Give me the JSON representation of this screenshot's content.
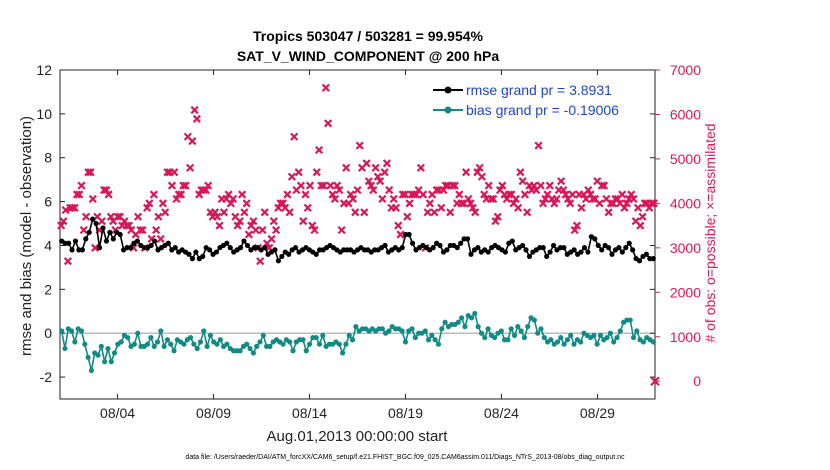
{
  "chart_data": {
    "type": "line",
    "title_line1": "Tropics 503047 / 503281 = 99.954%",
    "title_line2": "SAT_V_WIND_COMPONENT @ 200 hPa",
    "xlabel": "Aug.01,2013 00:00:00 start",
    "ylabel_left": "rmse and bias (model - observation)",
    "ylabel_right": "# of obs: o=possible; ×=assimilated",
    "ylim_left": [
      -3,
      12
    ],
    "ylim_right": [
      -400,
      7000
    ],
    "yticks_left": [
      "-2",
      "0",
      "2",
      "4",
      "6",
      "8",
      "10",
      "12"
    ],
    "yticks_right": [
      "0",
      "1000",
      "2000",
      "3000",
      "4000",
      "5000",
      "6000",
      "7000"
    ],
    "xlim_days": [
      1.0,
      32.0
    ],
    "xticks": [
      {
        "day": 4,
        "label": "08/04"
      },
      {
        "day": 9,
        "label": "08/09"
      },
      {
        "day": 14,
        "label": "08/14"
      },
      {
        "day": 19,
        "label": "08/19"
      },
      {
        "day": 24,
        "label": "08/24"
      },
      {
        "day": 29,
        "label": "08/29"
      }
    ],
    "time_step_days": 0.25,
    "series": [
      {
        "name": "rmse grand pr = 3.8931",
        "color": "#000000",
        "axis": "left",
        "marker": "circle",
        "values": [
          4.2,
          4.1,
          4.1,
          3.8,
          4.2,
          3.8,
          3.8,
          4.3,
          4.6,
          5.2,
          5.0,
          3.9,
          4.8,
          4.2,
          4.6,
          4.3,
          4.6,
          4.5,
          3.8,
          3.9,
          3.9,
          4.1,
          4.2,
          4.0,
          3.9,
          3.9,
          4.0,
          4.2,
          3.8,
          3.9,
          4.0,
          4.1,
          3.8,
          3.9,
          3.7,
          3.8,
          3.7,
          3.6,
          3.4,
          3.7,
          3.4,
          3.5,
          3.9,
          3.8,
          3.6,
          3.7,
          3.9,
          4.0,
          4.1,
          3.9,
          3.7,
          3.8,
          3.9,
          4.2,
          4.0,
          3.8,
          3.9,
          3.9,
          3.8,
          3.9,
          3.6,
          3.7,
          3.8,
          3.3,
          3.5,
          3.7,
          3.6,
          3.8,
          3.9,
          3.7,
          3.8,
          3.9,
          3.8,
          3.7,
          3.6,
          3.8,
          3.8,
          3.9,
          4.0,
          3.9,
          3.8,
          3.7,
          3.8,
          3.8,
          3.8,
          3.7,
          3.8,
          3.9,
          3.8,
          3.8,
          3.7,
          3.8,
          3.8,
          3.9,
          4.0,
          3.7,
          3.8,
          3.9,
          3.8,
          3.9,
          4.5,
          4.5,
          4.1,
          3.8,
          3.9,
          4.0,
          3.9,
          3.8,
          3.9,
          4.1,
          4.0,
          3.7,
          3.8,
          4.0,
          4.0,
          3.9,
          4.1,
          4.3,
          4.3,
          3.6,
          3.8,
          3.9,
          3.7,
          3.8,
          3.7,
          3.9,
          4.0,
          3.9,
          3.8,
          3.7,
          4.1,
          4.2,
          3.8,
          3.9,
          4.0,
          3.8,
          3.5,
          3.7,
          3.8,
          3.9,
          3.9,
          3.5,
          3.7,
          4.0,
          3.8,
          3.9,
          3.9,
          3.6,
          3.7,
          3.8,
          3.6,
          3.7,
          3.9,
          3.7,
          4.4,
          4.3,
          4.0,
          3.8,
          4.0,
          3.9,
          3.6,
          3.8,
          3.9,
          3.7,
          3.9,
          4.1,
          3.8,
          3.4,
          3.3,
          3.5,
          3.6,
          3.4,
          3.4
        ]
      },
      {
        "name": "bias grand pr = -0.19006",
        "color": "#138b84",
        "axis": "left",
        "marker": "circle",
        "values": [
          0.1,
          -0.7,
          0.2,
          0.1,
          -0.4,
          0.2,
          0.1,
          -0.5,
          -1.1,
          -1.7,
          -0.9,
          -1.0,
          -0.6,
          -1.3,
          -0.7,
          -1.3,
          -0.9,
          -0.5,
          -0.4,
          -0.1,
          -0.2,
          -0.6,
          -0.5,
          0.0,
          -0.6,
          -0.6,
          -0.5,
          -0.2,
          -0.6,
          -0.4,
          0.1,
          -0.6,
          -0.3,
          -0.5,
          -0.8,
          -0.3,
          -0.4,
          -0.5,
          -0.3,
          -0.2,
          -0.5,
          -0.7,
          -0.4,
          0.1,
          -0.6,
          -0.1,
          -0.4,
          -0.5,
          -0.3,
          -0.6,
          -0.5,
          -0.7,
          -0.8,
          -0.8,
          -0.8,
          -0.6,
          -0.5,
          -0.7,
          -0.9,
          -0.6,
          -0.4,
          -0.1,
          -0.6,
          -0.6,
          -0.4,
          -0.3,
          -0.4,
          -0.5,
          -0.3,
          -0.4,
          -0.8,
          -0.4,
          -0.3,
          -0.3,
          -0.8,
          -0.5,
          -0.2,
          -0.2,
          -0.5,
          -0.1,
          -0.6,
          -0.5,
          -0.5,
          -0.4,
          -0.5,
          -0.9,
          -0.5,
          -0.1,
          -0.3,
          0.3,
          0.1,
          0.2,
          0.2,
          0.1,
          0.2,
          0.1,
          0.2,
          0.2,
          0.0,
          0.1,
          0.3,
          0.2,
          0.2,
          0.1,
          -0.4,
          0.1,
          0.2,
          -0.2,
          0.0,
          0.0,
          0.1,
          -0.3,
          -0.1,
          -0.3,
          -0.5,
          0.2,
          0.5,
          0.3,
          0.4,
          0.4,
          0.5,
          0.7,
          0.3,
          0.8,
          0.7,
          0.9,
          0.3,
          0.0,
          -0.2,
          0.2,
          -0.1,
          -0.2,
          0.0,
          0.1,
          -0.3,
          -0.3,
          0.2,
          -0.1,
          0.3,
          0.1,
          -0.2,
          0.3,
          0.7,
          0.6,
          0.0,
          0.2,
          -0.2,
          -0.4,
          -0.3,
          -0.5,
          -0.4,
          -0.2,
          -0.5,
          -0.3,
          -0.1,
          -0.5,
          -0.3,
          -0.4,
          0.0,
          -0.1,
          -0.2,
          -0.1,
          -0.5,
          -0.1,
          -0.3,
          -0.2,
          0.0,
          -0.4,
          -0.2,
          0.1,
          0.5,
          0.6,
          0.6,
          -0.2,
          0.1,
          -0.3,
          -0.4,
          -0.2,
          -0.3,
          -0.4
        ]
      },
      {
        "name": "obs assimilated",
        "color": "#d6195a",
        "axis": "right",
        "marker": "x",
        "values": [
          3500,
          3600,
          3850,
          2700,
          3900,
          3900,
          3900,
          4200,
          4200,
          4400,
          3400,
          3700,
          4700,
          4700,
          4100,
          3000,
          3700,
          3400,
          3600,
          4300,
          4300,
          4200,
          3700,
          3600,
          3400,
          3700,
          3700,
          3500,
          3600,
          3500,
          3500,
          3400,
          3000,
          3300,
          3700,
          3400,
          3400,
          3000,
          3900,
          4000,
          3200,
          4200,
          3400,
          3700,
          3200,
          4000,
          3800,
          4700,
          4700,
          4400,
          4700,
          4100,
          4200,
          4200,
          4400,
          4400,
          5500,
          4800,
          5400,
          6100,
          5900,
          4200,
          4300,
          4300,
          4300,
          4400,
          3800,
          3700,
          3800,
          3700,
          3500,
          4100,
          3800,
          4100,
          4200,
          4000,
          4100,
          3700,
          3500,
          3600,
          4200,
          3800,
          4000,
          3300,
          3500,
          3600,
          3400,
          3000,
          2700,
          3400,
          3800,
          3100,
          3000,
          3200,
          3600,
          3400,
          3900,
          4000,
          4000,
          3900,
          4200,
          3800,
          4600,
          5500,
          4300,
          4700,
          4400,
          3600,
          4200,
          3900,
          4400,
          3500,
          3400,
          4700,
          5200,
          4400,
          4400,
          6600,
          5800,
          4400,
          4200,
          4100,
          4400,
          4300,
          3400,
          4000,
          4800,
          4000,
          4200,
          4100,
          3800,
          4300,
          5300,
          4800,
          3800,
          4900,
          4500,
          4400,
          4300,
          4800,
          4600,
          4500,
          4100,
          4700,
          4900,
          4300,
          3900,
          4100,
          3900,
          3500,
          3300,
          4200,
          4200,
          3700,
          4000,
          4200,
          4200,
          4200,
          4300,
          4800,
          4200,
          3000,
          3800,
          4000,
          4200,
          3800,
          4300,
          4300,
          3900,
          4300,
          4400,
          4400,
          3800,
          4400,
          4400,
          4000,
          4200,
          4000,
          4000,
          4700,
          4100,
          4000,
          3900,
          3800,
          4700,
          4800,
          4600,
          4200,
          4100,
          4400,
          4100,
          4100,
          3600,
          3700,
          4300,
          4400,
          4200,
          4100,
          4200,
          4200,
          4000,
          4100,
          3900,
          4700,
          4500,
          4200,
          3800,
          4400,
          4300,
          4400,
          4300,
          5300,
          4400,
          4000,
          4100,
          4200,
          4400,
          4100,
          4000,
          4100,
          4300,
          4500,
          4300,
          4200,
          4100,
          4000,
          4200,
          3400,
          3500,
          4200,
          3900,
          4200,
          4100,
          4300,
          4200,
          4100,
          4100,
          4500,
          4000,
          4400,
          4400,
          4100,
          3800,
          4000,
          4000,
          4100,
          4100,
          4000,
          4200,
          3900,
          4000,
          4100,
          4200,
          4100,
          3600,
          3900,
          3500,
          3700,
          4000,
          4000,
          3900,
          4000,
          4000
        ]
      }
    ],
    "legend": {
      "placement": "top-right",
      "entries": [
        "rmse grand pr = 3.8931",
        "bias grand pr = -0.19006"
      ]
    },
    "outlier_marker": {
      "x_label": "right-edge",
      "value": 0
    }
  },
  "footnote": "data file: /Users/raeder/DAI/ATM_forcXX/CAM6_setup/f.e21.FHIST_BGC.f09_025.CAM6assim.011/Diags_NTrS_2013-08/obs_diag_output.nc",
  "colors": {
    "rmse": "#000000",
    "bias": "#138b84",
    "obs": "#d6195a",
    "legend_text": "#1e46c8",
    "zero_line": "#bbbbbb"
  }
}
